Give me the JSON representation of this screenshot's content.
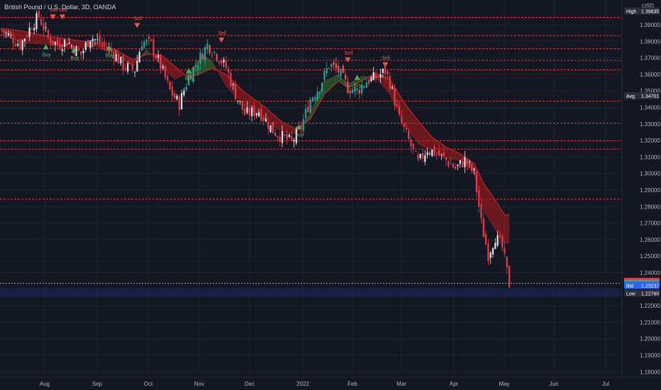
{
  "header": {
    "title": "British Pound / U.S. Dollar, 3D, OANDA"
  },
  "axis": {
    "currency": "USD",
    "price_ticks": [
      "1.39000",
      "1.38000",
      "1.37000",
      "1.36000",
      "1.35000",
      "1.34000",
      "1.33000",
      "1.32000",
      "1.31000",
      "1.30000",
      "1.29000",
      "1.28000",
      "1.27000",
      "1.26000",
      "1.25000",
      "1.24000",
      "1.22000",
      "1.21000",
      "1.20000",
      "1.19000",
      "1.18000"
    ],
    "time_ticks": [
      "Aug",
      "Sep",
      "Oct",
      "Nov",
      "Dec",
      "2022",
      "Feb",
      "Mar",
      "Apr",
      "May",
      "Jun",
      "Jul"
    ]
  },
  "price_badges": [
    {
      "label": "High",
      "value": "1.39835",
      "color": "#2a2e39",
      "price": 1.39835
    },
    {
      "label": "Avg",
      "value": "1.34701",
      "color": "#2a2e39",
      "price": 1.34701
    },
    {
      "label": "Ask",
      "value": "1.23467",
      "color": "#f23645",
      "price": 1.23467
    },
    {
      "label": "GBPUSD",
      "value": "1.23353",
      "color": "#22ab94",
      "price": 1.23353
    },
    {
      "label": "Bid",
      "value": "1.23237",
      "color": "#2962ff",
      "price": 1.23237
    },
    {
      "label": "Low",
      "value": "1.22760",
      "color": "#2a2e39",
      "price": 1.2276
    }
  ],
  "levels": [
    1.3945,
    1.3835,
    1.3755,
    1.3685,
    1.3628,
    1.3438,
    1.3305,
    1.3198,
    1.3148,
    1.2845
  ],
  "signals": [
    {
      "type": "Sell",
      "date_idx": 22,
      "price": 1.395
    },
    {
      "type": "Sell",
      "date_idx": 26,
      "price": 1.395
    },
    {
      "type": "Buy",
      "date_idx": 19,
      "price": 1.3765
    },
    {
      "type": "Buy",
      "date_idx": 31,
      "price": 1.3745
    },
    {
      "type": "Buy",
      "date_idx": 46,
      "price": 1.376
    },
    {
      "type": "Sell",
      "date_idx": 58,
      "price": 1.3898
    },
    {
      "type": "Sell",
      "date_idx": 94,
      "price": 1.381
    },
    {
      "type": "Buy",
      "date_idx": 80,
      "price": 1.362
    },
    {
      "type": "Buy",
      "date_idx": 127,
      "price": 1.328
    },
    {
      "type": "Sell",
      "date_idx": 148,
      "price": 1.369
    },
    {
      "type": "Buy",
      "date_idx": 152,
      "price": 1.358
    },
    {
      "type": "Sell",
      "date_idx": 164,
      "price": 1.366
    }
  ],
  "chart_data": {
    "type": "candlestick",
    "title": "British Pound / U.S. Dollar, 3D, OANDA",
    "ylim": [
      1.175,
      1.4
    ],
    "close_path": [
      [
        0,
        1.387
      ],
      [
        8,
        1.378
      ],
      [
        13,
        1.39
      ],
      [
        16,
        1.395
      ],
      [
        20,
        1.382
      ],
      [
        24,
        1.378
      ],
      [
        28,
        1.38
      ],
      [
        34,
        1.372
      ],
      [
        38,
        1.383
      ],
      [
        43,
        1.378
      ],
      [
        48,
        1.373
      ],
      [
        52,
        1.365
      ],
      [
        57,
        1.363
      ],
      [
        60,
        1.38
      ],
      [
        64,
        1.378
      ],
      [
        68,
        1.365
      ],
      [
        72,
        1.35
      ],
      [
        76,
        1.342
      ],
      [
        80,
        1.359
      ],
      [
        84,
        1.368
      ],
      [
        88,
        1.378
      ],
      [
        92,
        1.372
      ],
      [
        96,
        1.364
      ],
      [
        100,
        1.348
      ],
      [
        104,
        1.336
      ],
      [
        110,
        1.338
      ],
      [
        116,
        1.326
      ],
      [
        120,
        1.322
      ],
      [
        124,
        1.319
      ],
      [
        128,
        1.328
      ],
      [
        132,
        1.345
      ],
      [
        136,
        1.353
      ],
      [
        140,
        1.366
      ],
      [
        144,
        1.362
      ],
      [
        148,
        1.352
      ],
      [
        152,
        1.35
      ],
      [
        156,
        1.356
      ],
      [
        160,
        1.358
      ],
      [
        164,
        1.362
      ],
      [
        166,
        1.355
      ],
      [
        170,
        1.333
      ],
      [
        174,
        1.32
      ],
      [
        178,
        1.306
      ],
      [
        182,
        1.315
      ],
      [
        186,
        1.312
      ],
      [
        190,
        1.308
      ],
      [
        194,
        1.303
      ],
      [
        198,
        1.308
      ],
      [
        202,
        1.3
      ],
      [
        205,
        1.27
      ],
      [
        208,
        1.251
      ],
      [
        211,
        1.262
      ],
      [
        214,
        1.255
      ],
      [
        217,
        1.233
      ]
    ],
    "band_path": [
      [
        0,
        1.388,
        1.384
      ],
      [
        10,
        1.386,
        1.379
      ],
      [
        20,
        1.383,
        1.378
      ],
      [
        30,
        1.381,
        1.376
      ],
      [
        40,
        1.379,
        1.377
      ],
      [
        50,
        1.374,
        1.372
      ],
      [
        56,
        1.369,
        1.365
      ],
      [
        62,
        1.372,
        1.375
      ],
      [
        68,
        1.372,
        1.366
      ],
      [
        74,
        1.365,
        1.357
      ],
      [
        80,
        1.358,
        1.361
      ],
      [
        86,
        1.361,
        1.372
      ],
      [
        90,
        1.364,
        1.368
      ],
      [
        96,
        1.36,
        1.353
      ],
      [
        104,
        1.349,
        1.341
      ],
      [
        112,
        1.341,
        1.333
      ],
      [
        120,
        1.331,
        1.325
      ],
      [
        126,
        1.327,
        1.324
      ],
      [
        132,
        1.333,
        1.337
      ],
      [
        138,
        1.348,
        1.356
      ],
      [
        144,
        1.356,
        1.36
      ],
      [
        148,
        1.352,
        1.354
      ],
      [
        154,
        1.356,
        1.359
      ],
      [
        160,
        1.361,
        1.358
      ],
      [
        166,
        1.357,
        1.348
      ],
      [
        172,
        1.343,
        1.33
      ],
      [
        178,
        1.332,
        1.318
      ],
      [
        184,
        1.322,
        1.314
      ],
      [
        190,
        1.316,
        1.309
      ],
      [
        196,
        1.312,
        1.308
      ],
      [
        202,
        1.306,
        1.3
      ],
      [
        206,
        1.294,
        1.278
      ],
      [
        211,
        1.284,
        1.266
      ],
      [
        215,
        1.275,
        1.258
      ]
    ]
  }
}
